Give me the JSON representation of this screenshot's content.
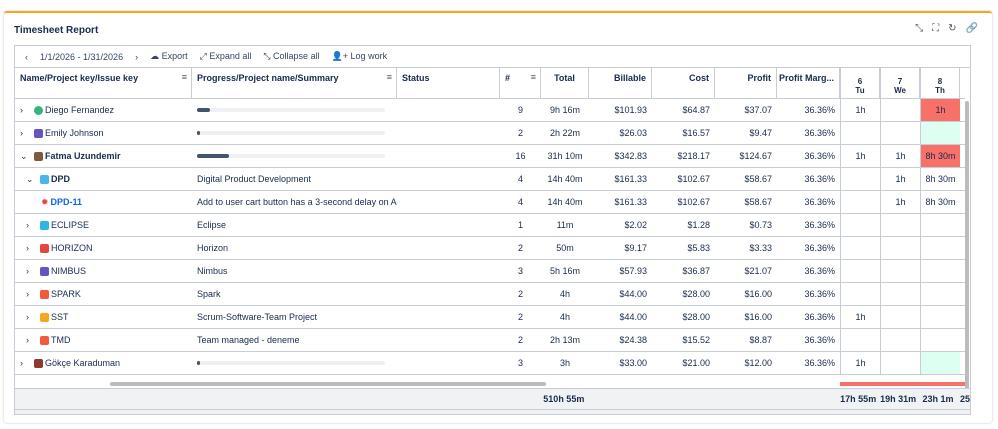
{
  "title": "Timesheet Report",
  "toolbar": {
    "date_range": "1/1/2026 - 1/31/2026",
    "export": "Export",
    "expand": "Expand all",
    "collapse": "Collapse all",
    "log": "Log work"
  },
  "columns": [
    "Name/Project key/Issue key",
    "Progress/Project name/Summary",
    "Status",
    "#",
    "Total",
    "Billable",
    "Cost",
    "Profit",
    "Profit Marg..."
  ],
  "days": [
    {
      "n": "6",
      "d": "Tu"
    },
    {
      "n": "7",
      "d": "We"
    },
    {
      "n": "8",
      "d": "Th"
    }
  ],
  "rows": [
    {
      "name": "Diego Fernandez",
      "summary": "",
      "progress": 0.07,
      "count": "9",
      "total": "9h 16m",
      "billable": "$101.93",
      "cost": "$64.87",
      "profit": "$37.07",
      "margin": "36.36%",
      "d6": "1h",
      "d7": "",
      "d8": "1h"
    },
    {
      "name": "Emily Johnson",
      "summary": "",
      "progress": 0.01,
      "count": "2",
      "total": "2h 22m",
      "billable": "$26.03",
      "cost": "$16.57",
      "profit": "$9.47",
      "margin": "36.36%",
      "d6": "",
      "d7": "",
      "d8": ""
    },
    {
      "name": "Fatma Uzundemir",
      "summary": "",
      "progress": 0.17,
      "count": "16",
      "total": "31h 10m",
      "billable": "$342.83",
      "cost": "$218.17",
      "profit": "$124.67",
      "margin": "36.36%",
      "d6": "1h",
      "d7": "1h",
      "d8": "8h 30m"
    },
    {
      "name": "DPD",
      "summary": "Digital Product Development",
      "count": "4",
      "total": "14h 40m",
      "billable": "$161.33",
      "cost": "$102.67",
      "profit": "$58.67",
      "margin": "36.36%",
      "d6": "",
      "d7": "1h",
      "d8": "8h 30m"
    },
    {
      "name": "DPD-11",
      "summary": "Add to user cart button has a 3-second delay on A...",
      "count": "4",
      "total": "14h 40m",
      "billable": "$161.33",
      "cost": "$102.67",
      "profit": "$58.67",
      "margin": "36.36%",
      "d6": "",
      "d7": "1h",
      "d8": "8h 30m"
    },
    {
      "name": "ECLIPSE",
      "summary": "Eclipse",
      "count": "1",
      "total": "11m",
      "billable": "$2.02",
      "cost": "$1.28",
      "profit": "$0.73",
      "margin": "36.36%",
      "d6": "",
      "d7": "",
      "d8": ""
    },
    {
      "name": "HORIZON",
      "summary": "Horizon",
      "count": "2",
      "total": "50m",
      "billable": "$9.17",
      "cost": "$5.83",
      "profit": "$3.33",
      "margin": "36.36%",
      "d6": "",
      "d7": "",
      "d8": ""
    },
    {
      "name": "NIMBUS",
      "summary": "Nimbus",
      "count": "3",
      "total": "5h 16m",
      "billable": "$57.93",
      "cost": "$36.87",
      "profit": "$21.07",
      "margin": "36.36%",
      "d6": "",
      "d7": "",
      "d8": ""
    },
    {
      "name": "SPARK",
      "summary": "Spark",
      "count": "2",
      "total": "4h",
      "billable": "$44.00",
      "cost": "$28.00",
      "profit": "$16.00",
      "margin": "36.36%",
      "d6": "",
      "d7": "",
      "d8": ""
    },
    {
      "name": "SST",
      "summary": "Scrum-Software-Team Project",
      "count": "2",
      "total": "4h",
      "billable": "$44.00",
      "cost": "$28.00",
      "profit": "$16.00",
      "margin": "36.36%",
      "d6": "1h",
      "d7": "",
      "d8": ""
    },
    {
      "name": "TMD",
      "summary": "Team managed - deneme",
      "count": "2",
      "total": "2h 13m",
      "billable": "$24.38",
      "cost": "$15.52",
      "profit": "$8.87",
      "margin": "36.36%",
      "d6": "",
      "d7": "",
      "d8": ""
    },
    {
      "name": "Gökçe Karaduman",
      "summary": "",
      "progress": 0.01,
      "count": "3",
      "total": "3h",
      "billable": "$33.00",
      "cost": "$21.00",
      "profit": "$12.00",
      "margin": "36.36%",
      "d6": "1h",
      "d7": "",
      "d8": ""
    }
  ],
  "footer": {
    "total": "510h 55m",
    "d6": "17h 55m",
    "d7": "19h 31m",
    "d8": "23h 1m",
    "d9": "25"
  }
}
